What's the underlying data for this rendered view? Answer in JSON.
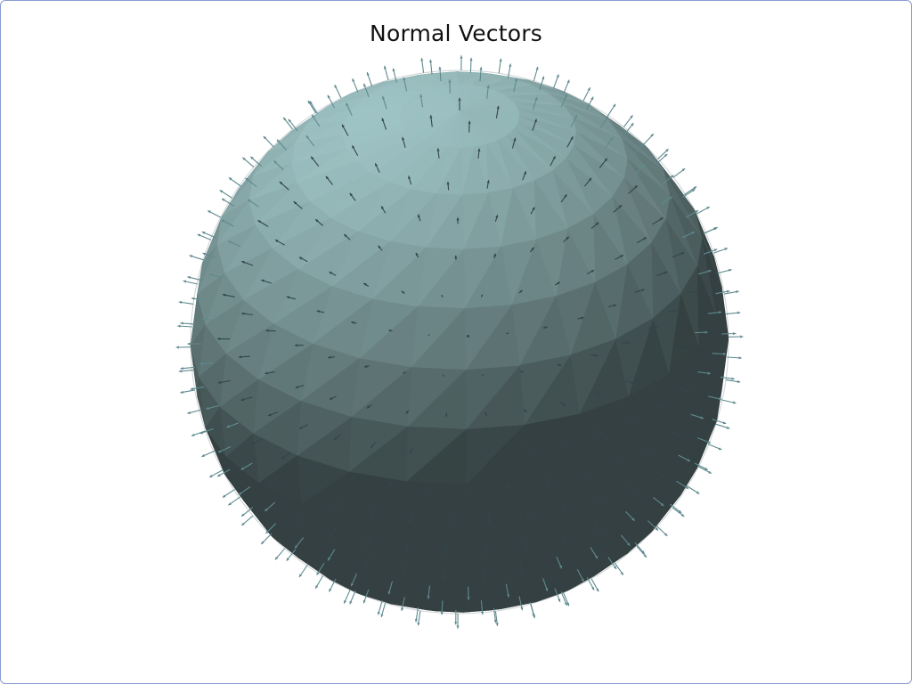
{
  "plot": {
    "title": "Normal Vectors"
  },
  "mesh": {
    "object": "sphere",
    "surface_color": "#9ec3c4",
    "vector_color": "#5f8a8f",
    "background": "#ffffff",
    "border_color": "#8a9bd4"
  }
}
